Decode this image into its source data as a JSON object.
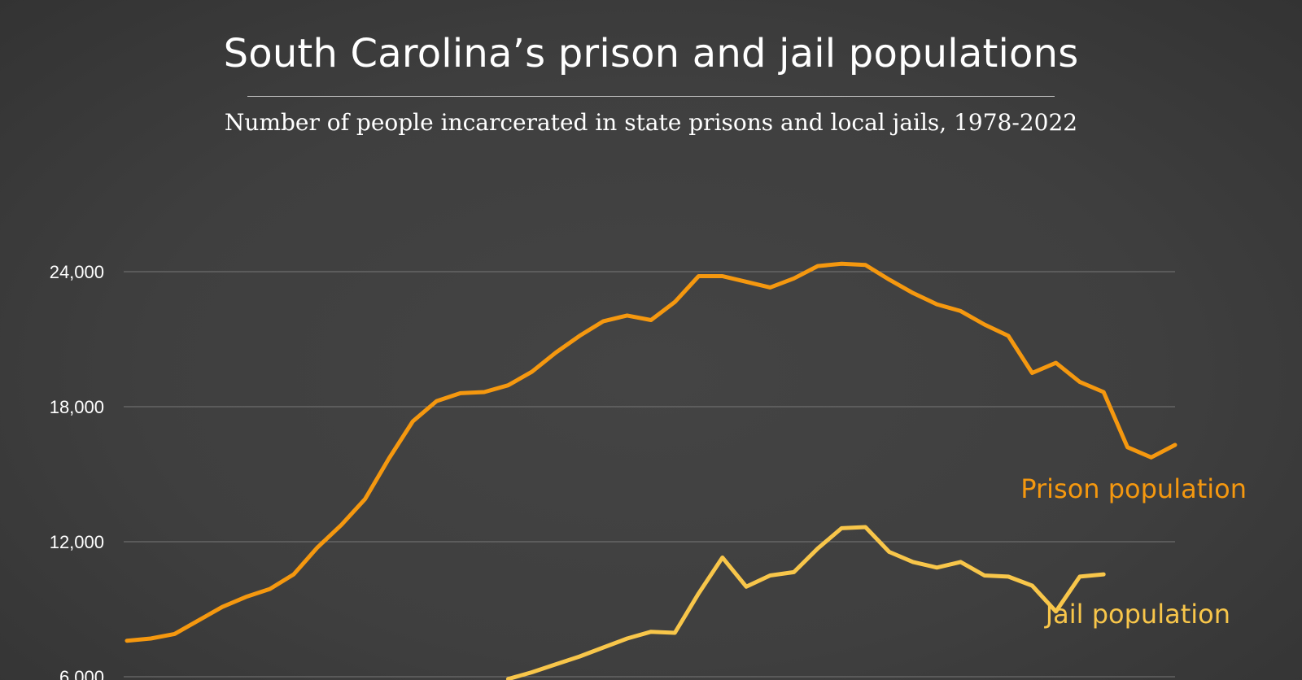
{
  "title": "South Carolina’s prison and jail populations",
  "subtitle": "Number of people incarcerated in state prisons and local jails, 1978-2022",
  "colors": {
    "prison": "#f5980f",
    "jail": "#f8c64a",
    "grid": "#777777",
    "background": "#404040"
  },
  "chart_data": {
    "type": "line",
    "title": "South Carolina’s prison and jail populations",
    "subtitle": "Number of people incarcerated in state prisons and local jails, 1978-2022",
    "ylim": [
      6000,
      24000
    ],
    "yticks": [
      6000,
      12000,
      18000,
      24000
    ],
    "ytick_labels": [
      "6,000",
      "12,000",
      "18,000",
      "24,000"
    ],
    "grid": true,
    "series": [
      {
        "name": "Prison population",
        "x": [
          1978,
          1979,
          1980,
          1981,
          1982,
          1983,
          1984,
          1985,
          1986,
          1987,
          1988,
          1989,
          1990,
          1991,
          1992,
          1993,
          1994,
          1995,
          1996,
          1997,
          1998,
          1999,
          2000,
          2001,
          2002,
          2003,
          2004,
          2005,
          2006,
          2007,
          2008,
          2009,
          2010,
          2011,
          2012,
          2013,
          2014,
          2015,
          2016,
          2017,
          2018,
          2019,
          2020,
          2021,
          2022
        ],
        "values": [
          7600,
          7700,
          7900,
          8500,
          9100,
          9550,
          9900,
          10550,
          11750,
          12750,
          13900,
          15700,
          17350,
          18250,
          18600,
          18650,
          18950,
          19550,
          20400,
          21150,
          21800,
          22050,
          21850,
          22650,
          23800,
          23800,
          23550,
          23300,
          23700,
          24250,
          24350,
          24300,
          23650,
          23050,
          22550,
          22250,
          21650,
          21150,
          19500,
          19950,
          19100,
          18650,
          16200,
          15750,
          16300
        ]
      },
      {
        "name": "Jail population",
        "x": [
          1994,
          1995,
          1996,
          1997,
          1998,
          1999,
          2000,
          2001,
          2002,
          2003,
          2004,
          2005,
          2006,
          2007,
          2008,
          2009,
          2010,
          2011,
          2012,
          2013,
          2014,
          2015,
          2016,
          2017,
          2018,
          2019
        ],
        "values": [
          5900,
          6200,
          6550,
          6900,
          7300,
          7700,
          8000,
          7950,
          9700,
          11300,
          10000,
          10500,
          10650,
          11700,
          12600,
          12650,
          11550,
          11100,
          10850,
          11100,
          10500,
          10450,
          10050,
          8900,
          10450,
          10550
        ]
      }
    ]
  }
}
